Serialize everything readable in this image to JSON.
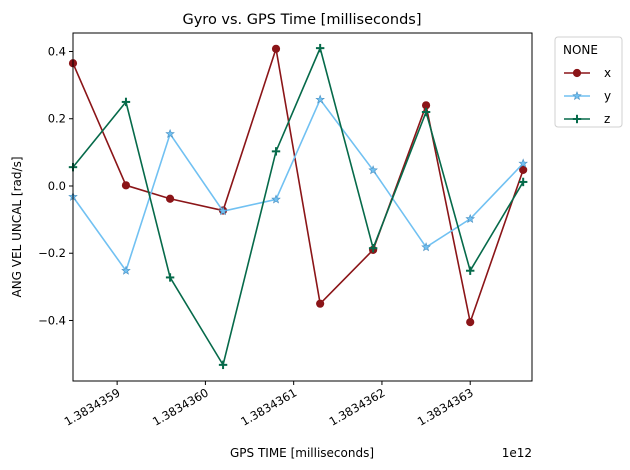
{
  "chart_data": {
    "type": "line",
    "title": "Gyro vs. GPS Time [milliseconds]",
    "xlabel": "GPS TIME [milliseconds]",
    "ylabel": "ANG VEL UNCAL [rad/s]",
    "x_offset_label": "1e12",
    "xlim": [
      1.38343585,
      1.38343637
    ],
    "ylim": [
      -0.58,
      0.455
    ],
    "x_ticks": [
      1.3834359,
      1.383436,
      1.3834361,
      1.3834362,
      1.3834363
    ],
    "x_tick_labels": [
      "1.3834359",
      "1.3834360",
      "1.3834361",
      "1.3834362",
      "1.3834363"
    ],
    "y_ticks": [
      -0.4,
      -0.2,
      0.0,
      0.2,
      0.4
    ],
    "y_tick_labels": [
      "−0.4",
      "−0.2",
      "0.0",
      "0.2",
      "0.4"
    ],
    "x": [
      1.38343585,
      1.38343591,
      1.38343596,
      1.38343602,
      1.38343608,
      1.38343613,
      1.38343619,
      1.38343625,
      1.3834363,
      1.38343636
    ],
    "legend": {
      "title": "NONE",
      "placement": "outside-top-right"
    },
    "series": [
      {
        "name": "x",
        "color": "#8b1518",
        "marker": "circle",
        "values": [
          0.365,
          0.002,
          -0.038,
          -0.073,
          0.408,
          -0.35,
          -0.19,
          0.24,
          -0.405,
          0.048
        ]
      },
      {
        "name": "y",
        "color": "#71c1f2",
        "marker": "star",
        "values": [
          -0.032,
          -0.252,
          0.155,
          -0.075,
          -0.04,
          0.257,
          0.047,
          -0.182,
          -0.098,
          0.067
        ]
      },
      {
        "name": "z",
        "color": "#066a4a",
        "marker": "plus",
        "values": [
          0.056,
          0.25,
          -0.272,
          -0.532,
          0.103,
          0.41,
          -0.185,
          0.22,
          -0.252,
          0.012
        ]
      }
    ]
  }
}
